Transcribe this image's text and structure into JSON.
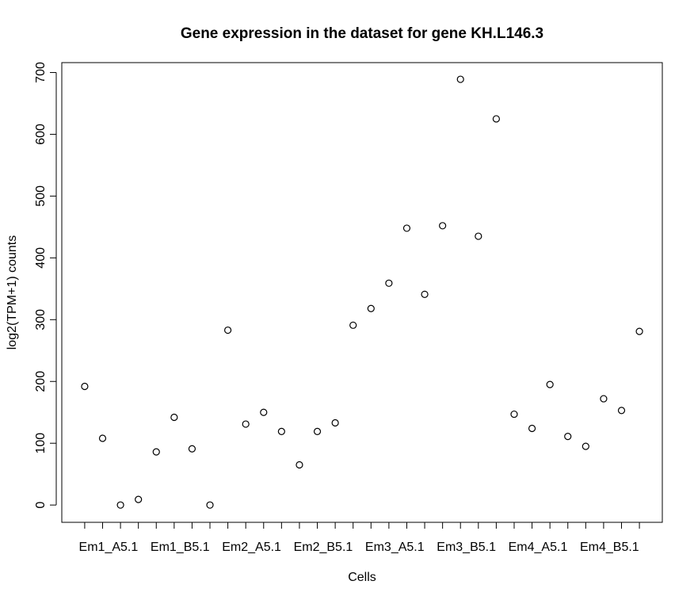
{
  "chart_data": {
    "type": "scatter",
    "title": "Gene expression in the dataset for gene KH.L146.3",
    "xlabel": "Cells",
    "ylabel": "log2(TPM+1) counts",
    "ylim": [
      -28,
      716
    ],
    "y_ticks": [
      0,
      100,
      200,
      300,
      400,
      500,
      600,
      700
    ],
    "x_tick_count": 32,
    "x_tick_labels": [
      {
        "index": 1,
        "label": "Em1_A5.1"
      },
      {
        "index": 5,
        "label": "Em1_B5.1"
      },
      {
        "index": 9,
        "label": "Em2_A5.1"
      },
      {
        "index": 13,
        "label": "Em2_B5.1"
      },
      {
        "index": 17,
        "label": "Em3_A5.1"
      },
      {
        "index": 21,
        "label": "Em3_B5.1"
      },
      {
        "index": 25,
        "label": "Em4_A5.1"
      },
      {
        "index": 29,
        "label": "Em4_B5.1"
      }
    ],
    "xlim": [
      -0.28,
      33.28
    ],
    "x": [
      1,
      2,
      3,
      4,
      5,
      6,
      7,
      8,
      9,
      10,
      11,
      12,
      13,
      14,
      15,
      16,
      17,
      18,
      19,
      20,
      21,
      22,
      23,
      24,
      25,
      26,
      27,
      28,
      29,
      30,
      31,
      32
    ],
    "y": [
      192,
      108,
      0,
      9,
      86,
      142,
      91,
      0,
      283,
      131,
      150,
      119,
      65,
      119,
      133,
      291,
      318,
      359,
      448,
      341,
      452,
      689,
      435,
      625,
      147,
      124,
      195,
      111,
      95,
      172,
      153,
      281
    ],
    "grid": false,
    "legend": "none",
    "marker": "open-circle",
    "colors": {
      "point": "#000000",
      "axis": "#000000",
      "background": "#ffffff"
    }
  }
}
